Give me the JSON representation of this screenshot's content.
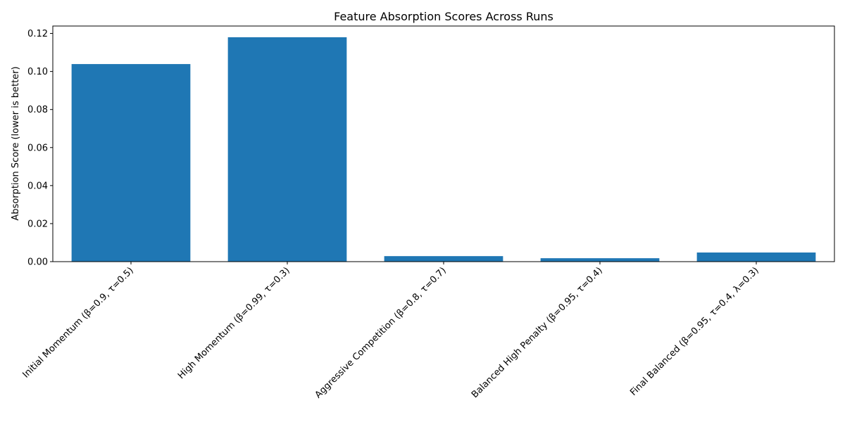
{
  "chart_data": {
    "type": "bar",
    "title": "Feature Absorption Scores Across Runs",
    "xlabel": "",
    "ylabel": "Absorption Score (lower is better)",
    "categories": [
      "Initial Momentum (β=0.9, τ=0.5)",
      "High Momentum (β=0.99, τ=0.3)",
      "Aggressive Competition (β=0.8, τ=0.7)",
      "Balanced High Penalty (β=0.95, τ=0.4)",
      "Final Balanced (β=0.95, τ=0.4, λ=0.3)"
    ],
    "values": [
      0.1039,
      0.118,
      0.0029,
      0.0018,
      0.0048
    ],
    "ylim": [
      0,
      0.1239
    ],
    "yticks": [
      "0.00",
      "0.02",
      "0.04",
      "0.06",
      "0.08",
      "0.10",
      "0.12"
    ],
    "bar_color": "#1f77b4",
    "grid": false,
    "legend": "none"
  }
}
